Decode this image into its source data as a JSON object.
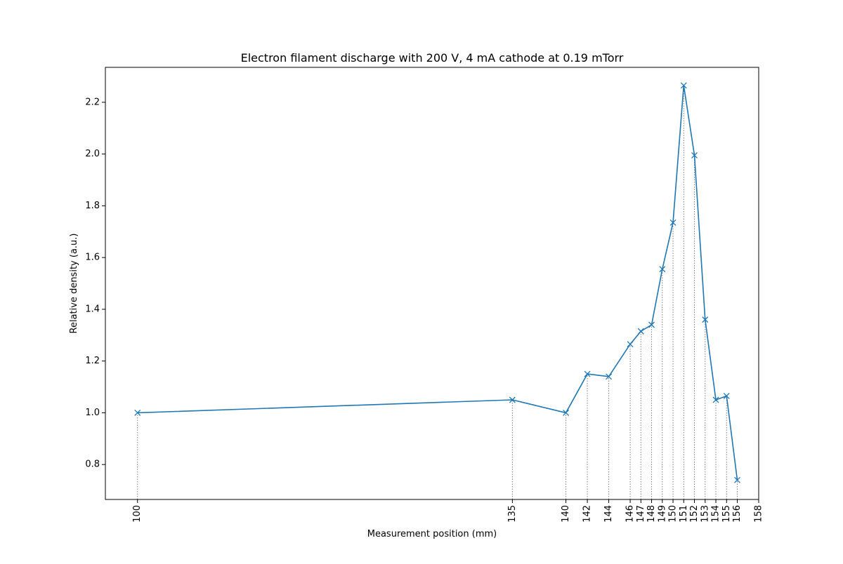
{
  "chart_data": {
    "type": "line",
    "title": "Electron filament discharge with 200 V, 4 mA cathode at 0.19 mTorr",
    "xlabel": "Measurement position (mm)",
    "ylabel": "Relative density (a.u.)",
    "xlim": [
      97,
      158
    ],
    "ylim": [
      0.665,
      2.335
    ],
    "x_ticks": [
      100,
      135,
      140,
      142,
      144,
      146,
      147,
      148,
      149,
      150,
      151,
      152,
      153,
      154,
      155,
      156,
      158
    ],
    "y_ticks": [
      0.8,
      1.0,
      1.2,
      1.4,
      1.6,
      1.8,
      2.0,
      2.2
    ],
    "grid": false,
    "marker": "x",
    "drop_lines": "dotted gray",
    "colors": {
      "series": "#1f77b4",
      "drop_line": "#808080",
      "axis": "#000000"
    },
    "series": [
      {
        "x": [
          100,
          135,
          140,
          142,
          144,
          146,
          147,
          148,
          149,
          150,
          151,
          152,
          153,
          154,
          155,
          156
        ],
        "values": [
          1.0,
          1.05,
          1.0,
          1.15,
          1.14,
          1.265,
          1.315,
          1.34,
          1.555,
          1.735,
          2.265,
          1.995,
          1.36,
          1.05,
          1.065,
          0.74
        ]
      }
    ]
  }
}
